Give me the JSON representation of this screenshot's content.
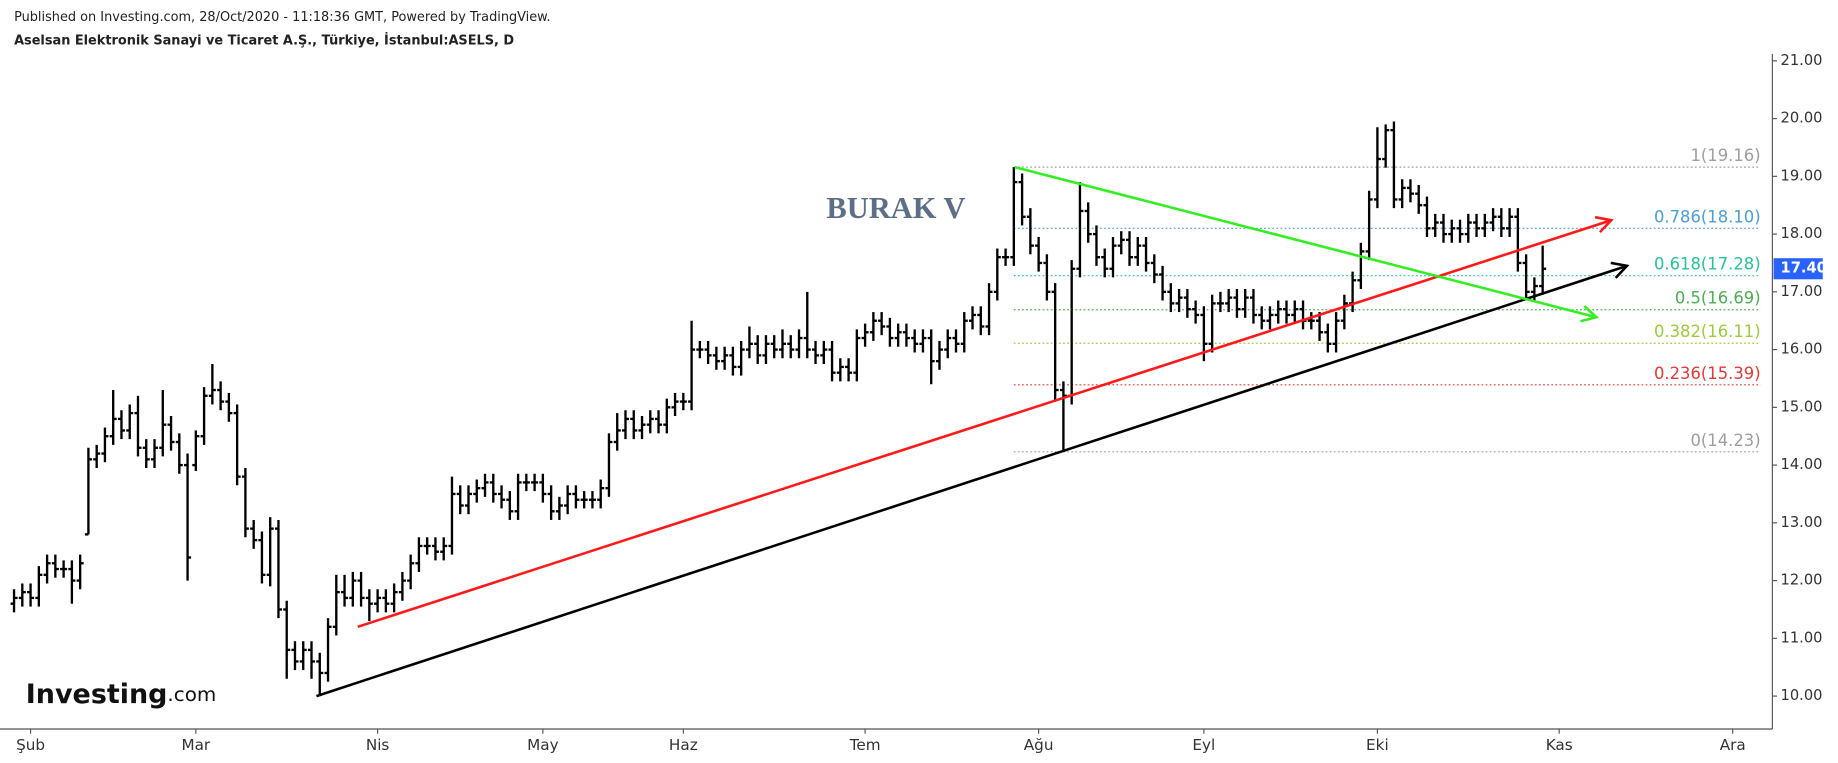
{
  "header": {
    "published": "Published on Investing.com, 28/Oct/2020 - 11:18:36 GMT, Powered by TradingView.",
    "symbol": "Aselsan Elektronik Sanayi ve Ticaret A.Ş., Türkiye, İstanbul:ASELS, D"
  },
  "logo": {
    "main": "Investing",
    "suffix": ".com"
  },
  "chart_data": {
    "type": "ohlc",
    "annotation": "BURAK V",
    "color": "#000000",
    "open": [
      11.6,
      11.7,
      11.8,
      11.7,
      12.1,
      12.3,
      12.2,
      12.2,
      12.0,
      12.8,
      14.1,
      14.2,
      14.5,
      14.8,
      14.6,
      14.9,
      14.3,
      14.1,
      14.3,
      14.7,
      14.4,
      14.0,
      14.0,
      14.5,
      15.2,
      15.3,
      15.1,
      14.9,
      13.8,
      12.9,
      12.7,
      12.1,
      12.9,
      11.5,
      10.8,
      10.6,
      10.8,
      10.6,
      10.4,
      11.2,
      11.8,
      11.7,
      12.0,
      11.7,
      11.6,
      11.7,
      11.6,
      11.8,
      12.0,
      12.3,
      12.6,
      12.6,
      12.5,
      12.6,
      13.5,
      13.3,
      13.5,
      13.6,
      13.7,
      13.5,
      13.4,
      13.2,
      13.7,
      13.7,
      13.7,
      13.5,
      13.2,
      13.3,
      13.5,
      13.4,
      13.4,
      13.4,
      13.6,
      14.4,
      14.6,
      14.8,
      14.6,
      14.7,
      14.8,
      14.7,
      15.0,
      15.1,
      15.1,
      16.0,
      16.0,
      15.9,
      15.8,
      15.9,
      15.7,
      16.0,
      16.1,
      15.9,
      16.1,
      16.0,
      16.1,
      16.0,
      16.2,
      16.0,
      15.9,
      16.0,
      15.6,
      15.7,
      15.6,
      16.2,
      16.3,
      16.5,
      16.4,
      16.2,
      16.3,
      16.2,
      16.1,
      16.2,
      15.8,
      16.0,
      16.2,
      16.1,
      16.5,
      16.6,
      16.4,
      17.0,
      17.6,
      17.6,
      18.9,
      18.3,
      17.8,
      17.5,
      17.0,
      15.3,
      15.2,
      17.4,
      18.4,
      18.0,
      17.6,
      17.4,
      17.8,
      17.9,
      17.6,
      17.8,
      17.5,
      17.3,
      17.0,
      16.8,
      16.9,
      16.7,
      16.6,
      16.1,
      16.8,
      16.8,
      16.9,
      16.7,
      16.9,
      16.6,
      16.5,
      16.6,
      16.7,
      16.6,
      16.7,
      16.5,
      16.5,
      16.3,
      16.1,
      16.5,
      16.8,
      17.2,
      17.7,
      18.6,
      19.3,
      19.8,
      18.6,
      18.8,
      18.7,
      18.5,
      18.1,
      18.2,
      18.0,
      18.1,
      18.0,
      18.2,
      18.1,
      18.2,
      18.3,
      18.1,
      18.3,
      17.5,
      17.0,
      17.1
    ],
    "high": [
      11.85,
      11.95,
      11.95,
      12.25,
      12.45,
      12.45,
      12.35,
      12.35,
      12.45,
      14.3,
      14.35,
      14.65,
      15.3,
      14.95,
      15.05,
      15.2,
      14.45,
      14.45,
      15.3,
      14.85,
      14.55,
      14.2,
      14.6,
      15.35,
      15.75,
      15.45,
      15.25,
      15.05,
      13.95,
      13.05,
      12.85,
      13.1,
      13.05,
      11.65,
      10.95,
      10.95,
      10.95,
      10.75,
      11.35,
      12.1,
      12.1,
      12.15,
      12.15,
      11.85,
      11.85,
      11.85,
      11.95,
      12.15,
      12.45,
      12.75,
      12.75,
      12.75,
      12.75,
      13.8,
      13.65,
      13.65,
      13.75,
      13.85,
      13.85,
      13.65,
      13.55,
      13.85,
      13.85,
      13.85,
      13.85,
      13.65,
      13.45,
      13.65,
      13.65,
      13.55,
      13.55,
      13.75,
      14.55,
      14.9,
      14.95,
      14.95,
      14.85,
      14.95,
      14.95,
      15.15,
      15.25,
      15.25,
      16.5,
      16.15,
      16.15,
      16.05,
      16.05,
      16.05,
      16.15,
      16.4,
      16.25,
      16.25,
      16.25,
      16.35,
      16.25,
      16.35,
      17.0,
      16.15,
      16.15,
      16.15,
      15.85,
      15.85,
      16.35,
      16.45,
      16.65,
      16.65,
      16.55,
      16.45,
      16.45,
      16.35,
      16.35,
      16.35,
      16.15,
      16.35,
      16.35,
      16.65,
      16.75,
      16.75,
      17.15,
      17.75,
      17.75,
      19.16,
      19.05,
      18.45,
      17.95,
      17.65,
      17.15,
      15.45,
      17.55,
      18.9,
      18.55,
      18.15,
      17.75,
      17.95,
      18.05,
      18.05,
      17.95,
      17.95,
      17.65,
      17.45,
      17.15,
      17.05,
      17.05,
      16.85,
      16.75,
      16.95,
      17.0,
      17.05,
      17.05,
      17.05,
      17.05,
      16.75,
      16.75,
      16.85,
      16.85,
      16.85,
      16.85,
      16.65,
      16.65,
      16.45,
      16.65,
      16.95,
      17.35,
      17.85,
      18.75,
      19.85,
      19.9,
      19.95,
      18.95,
      18.95,
      18.85,
      18.65,
      18.35,
      18.35,
      18.25,
      18.25,
      18.35,
      18.35,
      18.35,
      18.45,
      18.45,
      18.45,
      18.45,
      17.65,
      17.25,
      17.8
    ],
    "low": [
      11.45,
      11.55,
      11.55,
      11.55,
      11.95,
      12.05,
      12.05,
      11.6,
      11.85,
      12.8,
      13.95,
      14.05,
      14.35,
      14.45,
      14.45,
      14.15,
      13.95,
      13.95,
      14.15,
      14.25,
      13.85,
      12.0,
      13.9,
      14.35,
      15.05,
      14.95,
      14.75,
      13.65,
      12.75,
      12.55,
      11.95,
      11.9,
      11.35,
      10.3,
      10.45,
      10.45,
      10.3,
      10.0,
      10.25,
      11.05,
      11.55,
      11.55,
      11.55,
      11.3,
      11.45,
      11.45,
      11.45,
      11.65,
      11.85,
      12.15,
      12.45,
      12.35,
      12.35,
      12.45,
      13.15,
      13.15,
      13.35,
      13.45,
      13.35,
      13.25,
      13.05,
      13.05,
      13.55,
      13.55,
      13.35,
      13.05,
      13.05,
      13.15,
      13.25,
      13.25,
      13.25,
      13.25,
      13.45,
      14.25,
      14.45,
      14.45,
      14.45,
      14.55,
      14.55,
      14.55,
      14.85,
      14.95,
      14.95,
      15.85,
      15.75,
      15.65,
      15.65,
      15.55,
      15.55,
      15.85,
      15.75,
      15.75,
      15.85,
      15.85,
      15.85,
      15.85,
      15.85,
      15.75,
      15.75,
      15.45,
      15.45,
      15.45,
      15.45,
      16.05,
      16.15,
      16.25,
      16.05,
      16.05,
      16.05,
      15.95,
      15.95,
      15.4,
      15.65,
      15.85,
      15.95,
      15.95,
      16.35,
      16.25,
      16.25,
      16.85,
      17.45,
      17.45,
      18.15,
      17.65,
      17.35,
      16.85,
      15.1,
      14.23,
      15.05,
      17.25,
      17.85,
      17.45,
      17.25,
      17.25,
      17.65,
      17.45,
      17.45,
      17.35,
      17.15,
      16.85,
      16.65,
      16.65,
      16.55,
      16.45,
      15.8,
      15.95,
      16.65,
      16.65,
      16.55,
      16.55,
      16.45,
      16.35,
      16.35,
      16.45,
      16.45,
      16.45,
      16.35,
      16.35,
      16.15,
      15.95,
      15.95,
      16.35,
      16.65,
      17.05,
      17.55,
      18.45,
      19.15,
      18.45,
      18.45,
      18.55,
      18.35,
      17.95,
      17.95,
      17.85,
      17.85,
      17.85,
      17.85,
      17.95,
      17.95,
      18.05,
      17.95,
      17.95,
      17.35,
      16.85,
      16.85,
      16.95
    ],
    "close": [
      11.7,
      11.8,
      11.7,
      12.1,
      12.3,
      12.2,
      12.2,
      12.0,
      12.3,
      14.1,
      14.2,
      14.5,
      14.8,
      14.6,
      14.9,
      14.3,
      14.1,
      14.3,
      14.7,
      14.4,
      14.0,
      12.4,
      14.5,
      15.2,
      15.3,
      15.1,
      14.9,
      13.8,
      12.9,
      12.7,
      12.1,
      12.9,
      11.5,
      10.8,
      10.6,
      10.8,
      10.6,
      10.4,
      11.2,
      11.8,
      11.7,
      12.0,
      11.7,
      11.6,
      11.7,
      11.6,
      11.8,
      12.0,
      12.3,
      12.6,
      12.6,
      12.5,
      12.6,
      13.5,
      13.3,
      13.5,
      13.6,
      13.7,
      13.5,
      13.4,
      13.2,
      13.7,
      13.7,
      13.7,
      13.5,
      13.2,
      13.3,
      13.5,
      13.4,
      13.4,
      13.4,
      13.6,
      14.4,
      14.6,
      14.8,
      14.6,
      14.7,
      14.8,
      14.7,
      15.0,
      15.1,
      15.1,
      16.0,
      16.0,
      15.9,
      15.8,
      15.9,
      15.7,
      16.0,
      16.1,
      15.9,
      16.1,
      16.0,
      16.1,
      16.0,
      16.2,
      16.0,
      15.9,
      16.0,
      15.6,
      15.7,
      15.6,
      16.2,
      16.3,
      16.5,
      16.4,
      16.2,
      16.3,
      16.2,
      16.1,
      16.2,
      15.8,
      16.0,
      16.2,
      16.1,
      16.5,
      16.6,
      16.4,
      17.0,
      17.6,
      17.6,
      18.9,
      18.3,
      17.8,
      17.5,
      17.0,
      15.3,
      15.2,
      17.4,
      18.4,
      18.0,
      17.6,
      17.4,
      17.8,
      17.9,
      17.6,
      17.8,
      17.5,
      17.3,
      17.0,
      16.8,
      16.9,
      16.7,
      16.6,
      16.1,
      16.8,
      16.8,
      16.9,
      16.7,
      16.9,
      16.6,
      16.5,
      16.6,
      16.7,
      16.6,
      16.7,
      16.5,
      16.5,
      16.3,
      16.1,
      16.5,
      16.8,
      17.2,
      17.7,
      18.6,
      19.3,
      19.8,
      18.6,
      18.8,
      18.7,
      18.5,
      18.1,
      18.2,
      18.0,
      18.1,
      18.0,
      18.2,
      18.1,
      18.2,
      18.3,
      18.1,
      18.3,
      17.5,
      17.0,
      17.1,
      17.4
    ],
    "last_price": {
      "value": 17.4,
      "label": "17.40",
      "color": "#2962ff"
    },
    "xlim": [
      -1.7,
      212.8
    ],
    "xticks": [
      {
        "value": 2,
        "label": "Şub"
      },
      {
        "value": 22,
        "label": "Mar"
      },
      {
        "value": 44,
        "label": "Nis"
      },
      {
        "value": 64,
        "label": "May"
      },
      {
        "value": 81,
        "label": "Haz"
      },
      {
        "value": 103,
        "label": "Tem"
      },
      {
        "value": 124,
        "label": "Ağu"
      },
      {
        "value": 144,
        "label": "Eyl"
      },
      {
        "value": 165,
        "label": "Eki"
      },
      {
        "value": 187,
        "label": "Kas"
      },
      {
        "value": 208,
        "label": "Ara"
      }
    ],
    "ylim": [
      9.43,
      21.12
    ],
    "yticks": [
      {
        "value": 10,
        "label": "10.00"
      },
      {
        "value": 11,
        "label": "11.00"
      },
      {
        "value": 12,
        "label": "12.00"
      },
      {
        "value": 13,
        "label": "13.00"
      },
      {
        "value": 14,
        "label": "14.00"
      },
      {
        "value": 15,
        "label": "15.00"
      },
      {
        "value": 16,
        "label": "16.00"
      },
      {
        "value": 17,
        "label": "17.00"
      },
      {
        "value": 18,
        "label": "18.00"
      },
      {
        "value": 19,
        "label": "19.00"
      },
      {
        "value": 20,
        "label": "20.00"
      },
      {
        "value": 21,
        "label": "21.00"
      }
    ],
    "fib": {
      "x_start": 121,
      "levels": [
        {
          "value": 19.16,
          "label": "1(19.16)",
          "color": "#9e9e9e"
        },
        {
          "value": 18.1,
          "label": "0.786(18.10)",
          "color": "#4a9fd8"
        },
        {
          "value": 17.28,
          "label": "0.618(17.28)",
          "color": "#26c49a"
        },
        {
          "value": 16.69,
          "label": "0.5(16.69)",
          "color": "#4caf50"
        },
        {
          "value": 16.11,
          "label": "0.382(16.11)",
          "color": "#9ccc3b"
        },
        {
          "value": 15.39,
          "label": "0.236(15.39)",
          "color": "#e53935"
        },
        {
          "value": 14.23,
          "label": "0(14.23)",
          "color": "#9e9e9e"
        }
      ]
    },
    "trendlines": [
      {
        "color": "#ff1a1a",
        "x": [
          41.6,
          193.3
        ],
        "y": [
          11.2,
          18.24
        ]
      },
      {
        "color": "#000000",
        "x": [
          36.6,
          195.2
        ],
        "y": [
          10.0,
          17.45
        ]
      },
      {
        "color": "#33ee22",
        "x": [
          121.1,
          191.5
        ],
        "y": [
          19.16,
          16.56
        ]
      }
    ]
  }
}
